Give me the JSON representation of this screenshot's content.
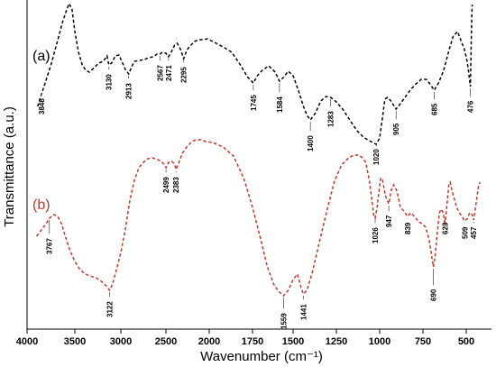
{
  "chart_data": {
    "type": "line",
    "title": "",
    "xlabel": "Wavenumber (cm⁻¹)",
    "ylabel": "Transmittance (a.u.)",
    "xlim": [
      4000,
      400
    ],
    "x_reversed": true,
    "x_ticks": [
      {
        "value": 4000,
        "label": "4000"
      },
      {
        "value": 3500,
        "label": "3500"
      },
      {
        "value": 3000,
        "label": "3000"
      },
      {
        "value": 2500,
        "label": "2500"
      },
      {
        "value": 2000,
        "label": "2000"
      },
      {
        "value": 1750,
        "label": "1750"
      },
      {
        "value": 1500,
        "label": "1500"
      },
      {
        "value": 1250,
        "label": "1250"
      },
      {
        "value": 1000,
        "label": "1000"
      },
      {
        "value": 750,
        "label": "750"
      },
      {
        "value": 500,
        "label": "500"
      }
    ],
    "grid": false,
    "legend": "none",
    "series": [
      {
        "label": "(a)",
        "color": "#000000",
        "points": [
          [
            3890,
            118
          ],
          [
            3820,
            95
          ],
          [
            3750,
            72
          ],
          [
            3680,
            45
          ],
          [
            3630,
            25
          ],
          [
            3590,
            12
          ],
          [
            3560,
            4
          ],
          [
            3530,
            10
          ],
          [
            3500,
            35
          ],
          [
            3460,
            58
          ],
          [
            3420,
            72
          ],
          [
            3380,
            78
          ],
          [
            3340,
            80
          ],
          [
            3290,
            75
          ],
          [
            3240,
            70
          ],
          [
            3190,
            68
          ],
          [
            3150,
            62
          ],
          [
            3130,
            72
          ],
          [
            3100,
            70
          ],
          [
            3060,
            62
          ],
          [
            3020,
            61
          ],
          [
            2990,
            68
          ],
          [
            2950,
            77
          ],
          [
            2913,
            82
          ],
          [
            2880,
            74
          ],
          [
            2850,
            68
          ],
          [
            2790,
            67
          ],
          [
            2740,
            66
          ],
          [
            2690,
            64
          ],
          [
            2640,
            63
          ],
          [
            2600,
            60
          ],
          [
            2567,
            60
          ],
          [
            2540,
            58
          ],
          [
            2500,
            59
          ],
          [
            2471,
            63
          ],
          [
            2440,
            58
          ],
          [
            2400,
            50
          ],
          [
            2370,
            48
          ],
          [
            2330,
            55
          ],
          [
            2295,
            65
          ],
          [
            2260,
            56
          ],
          [
            2230,
            52
          ],
          [
            2200,
            49
          ],
          [
            2170,
            46
          ],
          [
            2120,
            44
          ],
          [
            2070,
            44
          ],
          [
            2020,
            43
          ],
          [
            1970,
            47
          ],
          [
            1920,
            52
          ],
          [
            1870,
            58
          ],
          [
            1820,
            72
          ],
          [
            1780,
            85
          ],
          [
            1745,
            92
          ],
          [
            1720,
            84
          ],
          [
            1690,
            78
          ],
          [
            1650,
            73
          ],
          [
            1610,
            80
          ],
          [
            1584,
            90
          ],
          [
            1560,
            86
          ],
          [
            1530,
            79
          ],
          [
            1500,
            84
          ],
          [
            1470,
            100
          ],
          [
            1440,
            118
          ],
          [
            1420,
            128
          ],
          [
            1400,
            133
          ],
          [
            1370,
            125
          ],
          [
            1340,
            112
          ],
          [
            1310,
            107
          ],
          [
            1283,
            108
          ],
          [
            1250,
            113
          ],
          [
            1210,
            122
          ],
          [
            1170,
            134
          ],
          [
            1130,
            145
          ],
          [
            1095,
            152
          ],
          [
            1060,
            156
          ],
          [
            1040,
            158
          ],
          [
            1020,
            160
          ],
          [
            1000,
            153
          ],
          [
            985,
            132
          ],
          [
            970,
            110
          ],
          [
            955,
            108
          ],
          [
            935,
            112
          ],
          [
            905,
            121
          ],
          [
            880,
            115
          ],
          [
            850,
            107
          ],
          [
            820,
            99
          ],
          [
            790,
            93
          ],
          [
            760,
            88
          ],
          [
            730,
            88
          ],
          [
            710,
            93
          ],
          [
            685,
            100
          ],
          [
            660,
            92
          ],
          [
            630,
            78
          ],
          [
            600,
            56
          ],
          [
            575,
            40
          ],
          [
            550,
            35
          ],
          [
            530,
            45
          ],
          [
            510,
            55
          ],
          [
            495,
            68
          ],
          [
            486,
            80
          ],
          [
            480,
            90
          ],
          [
            476,
            96
          ],
          [
            472,
            60
          ],
          [
            468,
            20
          ],
          [
            465,
            5
          ]
        ]
      },
      {
        "label": "(b)",
        "color": "#C0392B",
        "points": [
          [
            3900,
            262
          ],
          [
            3850,
            255
          ],
          [
            3800,
            248
          ],
          [
            3767,
            242
          ],
          [
            3720,
            238
          ],
          [
            3680,
            240
          ],
          [
            3640,
            248
          ],
          [
            3600,
            262
          ],
          [
            3550,
            278
          ],
          [
            3500,
            290
          ],
          [
            3450,
            298
          ],
          [
            3400,
            303
          ],
          [
            3340,
            306
          ],
          [
            3270,
            308
          ],
          [
            3200,
            313
          ],
          [
            3150,
            318
          ],
          [
            3122,
            322
          ],
          [
            3090,
            315
          ],
          [
            3050,
            300
          ],
          [
            3000,
            280
          ],
          [
            2950,
            254
          ],
          [
            2900,
            222
          ],
          [
            2850,
            200
          ],
          [
            2800,
            186
          ],
          [
            2750,
            180
          ],
          [
            2700,
            176
          ],
          [
            2650,
            175
          ],
          [
            2590,
            177
          ],
          [
            2530,
            181
          ],
          [
            2499,
            186
          ],
          [
            2470,
            180
          ],
          [
            2430,
            179
          ],
          [
            2400,
            182
          ],
          [
            2383,
            188
          ],
          [
            2350,
            180
          ],
          [
            2310,
            170
          ],
          [
            2260,
            163
          ],
          [
            2200,
            157
          ],
          [
            2150,
            155
          ],
          [
            2100,
            155
          ],
          [
            2040,
            157
          ],
          [
            1980,
            158
          ],
          [
            1920,
            163
          ],
          [
            1860,
            173
          ],
          [
            1800,
            198
          ],
          [
            1750,
            230
          ],
          [
            1700,
            265
          ],
          [
            1660,
            295
          ],
          [
            1620,
            315
          ],
          [
            1590,
            323
          ],
          [
            1559,
            328
          ],
          [
            1530,
            322
          ],
          [
            1500,
            310
          ],
          [
            1475,
            304
          ],
          [
            1455,
            318
          ],
          [
            1441,
            326
          ],
          [
            1420,
            322
          ],
          [
            1390,
            303
          ],
          [
            1350,
            270
          ],
          [
            1300,
            230
          ],
          [
            1260,
            200
          ],
          [
            1220,
            183
          ],
          [
            1180,
            175
          ],
          [
            1150,
            172
          ],
          [
            1120,
            172
          ],
          [
            1100,
            175
          ],
          [
            1080,
            180
          ],
          [
            1060,
            200
          ],
          [
            1045,
            222
          ],
          [
            1035,
            238
          ],
          [
            1026,
            242
          ],
          [
            1015,
            230
          ],
          [
            1005,
            214
          ],
          [
            995,
            198
          ],
          [
            985,
            198
          ],
          [
            972,
            212
          ],
          [
            962,
            220
          ],
          [
            947,
            226
          ],
          [
            935,
            212
          ],
          [
            920,
            205
          ],
          [
            900,
            212
          ],
          [
            880,
            230
          ],
          [
            860,
            234
          ],
          [
            839,
            240
          ],
          [
            820,
            236
          ],
          [
            800,
            240
          ],
          [
            775,
            246
          ],
          [
            755,
            248
          ],
          [
            735,
            252
          ],
          [
            715,
            265
          ],
          [
            700,
            283
          ],
          [
            690,
            296
          ],
          [
            680,
            285
          ],
          [
            668,
            260
          ],
          [
            655,
            236
          ],
          [
            645,
            232
          ],
          [
            633,
            236
          ],
          [
            623,
            250
          ],
          [
            612,
            228
          ],
          [
            600,
            204
          ],
          [
            592,
            202
          ],
          [
            582,
            212
          ],
          [
            570,
            220
          ],
          [
            555,
            230
          ],
          [
            540,
            236
          ],
          [
            525,
            240
          ],
          [
            509,
            245
          ],
          [
            495,
            243
          ],
          [
            480,
            236
          ],
          [
            465,
            238
          ],
          [
            457,
            244
          ],
          [
            450,
            236
          ],
          [
            440,
            222
          ],
          [
            430,
            208
          ],
          [
            420,
            202
          ]
        ]
      }
    ],
    "peak_labels_a": [
      "3848",
      "3130",
      "2913",
      "2567",
      "2471",
      "2295",
      "1745",
      "1584",
      "1400",
      "1283",
      "1020",
      "905",
      "685",
      "476"
    ],
    "peak_labels_b": [
      "3767",
      "3122",
      "2499",
      "2383",
      "1559",
      "1441",
      "1026",
      "947",
      "839",
      "690",
      "623",
      "509",
      "457"
    ]
  }
}
